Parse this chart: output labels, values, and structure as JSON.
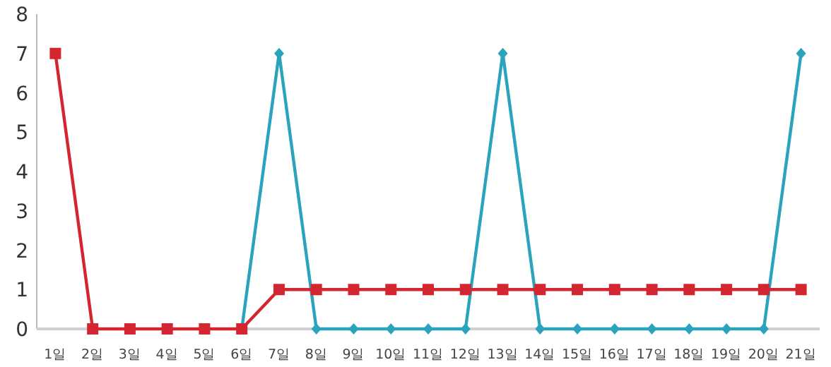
{
  "chart_data": {
    "type": "line",
    "categories": [
      "1일",
      "2일",
      "3일",
      "4일",
      "5일",
      "6일",
      "7일",
      "8일",
      "9일",
      "10일",
      "11일",
      "12일",
      "13일",
      "14일",
      "15일",
      "16일",
      "17일",
      "18일",
      "19일",
      "20일",
      "21일"
    ],
    "series": [
      {
        "color": "#2ba3bd",
        "marker": "diamond",
        "values": [
          null,
          null,
          null,
          null,
          null,
          0,
          7,
          0,
          0,
          0,
          0,
          0,
          7,
          0,
          0,
          0,
          0,
          0,
          0,
          0,
          7
        ]
      },
      {
        "color": "#d42630",
        "marker": "square",
        "values": [
          7,
          0,
          0,
          0,
          0,
          0,
          1,
          1,
          1,
          1,
          1,
          1,
          1,
          1,
          1,
          1,
          1,
          1,
          1,
          1,
          1
        ]
      }
    ],
    "ylim": [
      0,
      8
    ],
    "yticks": [
      0,
      1,
      2,
      3,
      4,
      5,
      6,
      7,
      8
    ],
    "grid": false
  }
}
